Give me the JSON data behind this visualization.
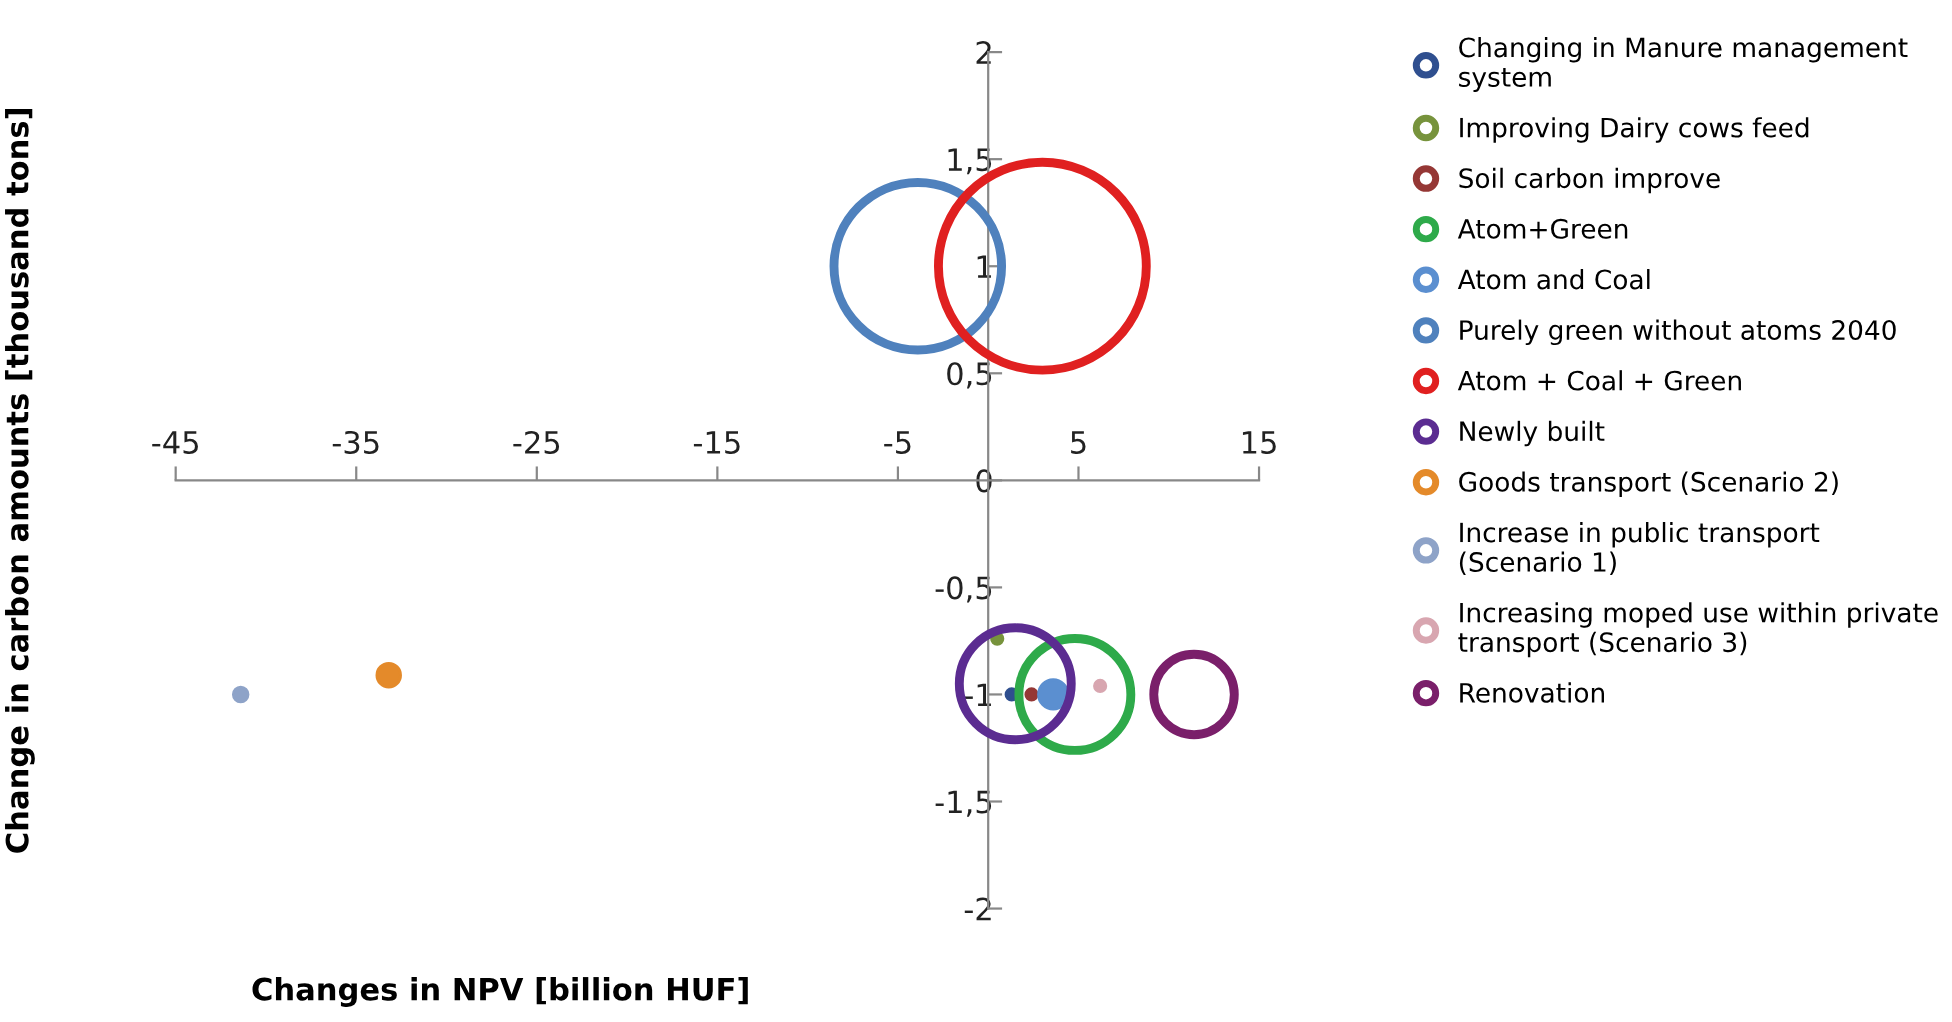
{
  "chart_data": {
    "type": "bubble",
    "xlabel": "Changes in NPV [billion HUF]",
    "ylabel": "Change in carbon amounts [thousand tons]",
    "xlim": [
      -45,
      15
    ],
    "xticks": [
      -45,
      -35,
      -25,
      -15,
      -5,
      5,
      15
    ],
    "ylim": [
      -2,
      2
    ],
    "yticks": [
      -2,
      {
        "value": -1.5,
        "label": "-1,5"
      },
      -1,
      {
        "value": -0.5,
        "label": "-0,5"
      },
      0,
      {
        "value": 0.5,
        "label": "0,5"
      },
      1,
      {
        "value": 1.5,
        "label": "1,5"
      },
      2
    ],
    "legend": "right",
    "grid": false,
    "series": [
      {
        "name": "Changing in Manure management\nsystem",
        "color": "#2f4f8f",
        "x": [
          1.3
        ],
        "values": [
          -1
        ],
        "sizes": [
          0.003
        ]
      },
      {
        "name": "Improving Dairy cows feed",
        "color": "#77933c",
        "x": [
          0.5
        ],
        "values": [
          -0.74
        ],
        "sizes": [
          0.003
        ]
      },
      {
        "name": "Soil carbon improve",
        "color": "#953735",
        "x": [
          2.4
        ],
        "values": [
          -1
        ],
        "sizes": [
          0.003
        ]
      },
      {
        "name": "Atom+Green",
        "color": "#2eaa4a",
        "x": [
          4.8
        ],
        "values": [
          -1
        ],
        "sizes": [
          0.29
        ]
      },
      {
        "name": "Atom and Coal",
        "color": "#5b8fd0",
        "x": [
          3.6
        ],
        "values": [
          -1
        ],
        "sizes": [
          0.02
        ]
      },
      {
        "name": "Purely green without atoms 2040",
        "color": "#4f81bd",
        "x": [
          -3.9
        ],
        "values": [
          1
        ],
        "sizes": [
          0.65
        ]
      },
      {
        "name": "Atom + Coal + Green",
        "color": "#e02020",
        "x": [
          3
        ],
        "values": [
          1
        ],
        "sizes": [
          1
        ]
      },
      {
        "name": "Newly built",
        "color": "#5b2c91",
        "x": [
          1.5
        ],
        "values": [
          -0.95
        ],
        "sizes": [
          0.29
        ]
      },
      {
        "name": "Goods transport (Scenario 2)",
        "color": "#e48a2a",
        "x": [
          -33.2
        ],
        "values": [
          -0.91
        ],
        "sizes": [
          0.013
        ]
      },
      {
        "name": "Increase in public transport\n(Scenario 1)",
        "color": "#8ea3c8",
        "x": [
          -41.4
        ],
        "values": [
          -1
        ],
        "sizes": [
          0.005
        ]
      },
      {
        "name": "Increasing moped use within private\ntransport (Scenario 3)",
        "color": "#d8a6b0",
        "x": [
          6.2
        ],
        "values": [
          -0.96
        ],
        "sizes": [
          0.003
        ]
      },
      {
        "name": "Renovation",
        "color": "#7a1f6a",
        "x": [
          11.4
        ],
        "values": [
          -1
        ],
        "sizes": [
          0.15
        ]
      }
    ]
  }
}
